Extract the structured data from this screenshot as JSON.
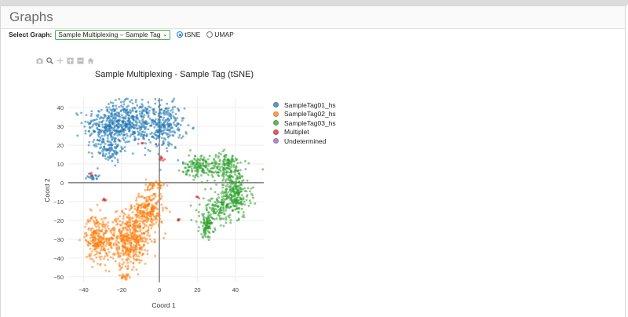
{
  "panel": {
    "title": "Graphs"
  },
  "controls": {
    "select_label": "Select Graph:",
    "selected_graph": "Sample Multiplexing – Sample Tag",
    "radios": [
      {
        "label": "tSNE",
        "checked": true
      },
      {
        "label": "UMAP",
        "checked": false
      }
    ]
  },
  "modebar": [
    "camera-icon",
    "zoom-icon",
    "pan-icon",
    "zoom-in-icon",
    "zoom-out-icon",
    "home-icon"
  ],
  "chart_data": {
    "type": "scatter",
    "title": "Sample Multiplexing - Sample Tag (tSNE)",
    "xlabel": "Coord 1",
    "ylabel": "Coord 2",
    "xlim": [
      -48,
      55
    ],
    "ylim": [
      -53,
      45
    ],
    "xticks": [
      -40,
      -20,
      0,
      20,
      40
    ],
    "yticks": [
      40,
      30,
      20,
      10,
      0,
      -10,
      -20,
      -30,
      -40,
      -50
    ],
    "grid": true,
    "legend_position": "right",
    "series": [
      {
        "name": "SampleTag01_hs",
        "color": "#1f77b4",
        "count": 900,
        "clusters": [
          {
            "cx": -27,
            "cy": 30,
            "sx": 6.5,
            "sy": 6,
            "n": 260
          },
          {
            "cx": -14,
            "cy": 32,
            "sx": 7,
            "sy": 6,
            "n": 320
          },
          {
            "cx": 3,
            "cy": 30,
            "sx": 5,
            "sy": 6,
            "n": 220
          },
          {
            "cx": -27,
            "cy": 17,
            "sx": 4,
            "sy": 3,
            "n": 80
          },
          {
            "cx": -35,
            "cy": 3.5,
            "sx": 1.5,
            "sy": 1.2,
            "n": 20
          }
        ]
      },
      {
        "name": "SampleTag02_hs",
        "color": "#ff7f0e",
        "count": 1000,
        "clusters": [
          {
            "cx": -16,
            "cy": -30,
            "sx": 6,
            "sy": 7,
            "n": 480
          },
          {
            "cx": -6,
            "cy": -15,
            "sx": 4,
            "sy": 5,
            "n": 240
          },
          {
            "cx": -33,
            "cy": -29,
            "sx": 3,
            "sy": 6,
            "n": 220
          },
          {
            "cx": -18,
            "cy": -50,
            "sx": 1.5,
            "sy": 1.2,
            "n": 20
          },
          {
            "cx": -2,
            "cy": -2,
            "sx": 2.5,
            "sy": 2,
            "n": 40
          }
        ]
      },
      {
        "name": "SampleTag03_hs",
        "color": "#2ca02c",
        "count": 750,
        "clusters": [
          {
            "cx": 22,
            "cy": 9,
            "sx": 5,
            "sy": 3,
            "n": 160
          },
          {
            "cx": 36,
            "cy": 8,
            "sx": 4,
            "sy": 4,
            "n": 140
          },
          {
            "cx": 40,
            "cy": -6,
            "sx": 4,
            "sy": 6,
            "n": 220
          },
          {
            "cx": 32,
            "cy": -13,
            "sx": 5,
            "sy": 4,
            "n": 140
          },
          {
            "cx": 25,
            "cy": -23,
            "sx": 2,
            "sy": 3,
            "n": 90
          }
        ]
      },
      {
        "name": "Multiplet",
        "color": "#d62728",
        "count": 30,
        "clusters": [
          {
            "cx": 1,
            "cy": 13,
            "sx": 0.8,
            "sy": 1,
            "n": 8
          },
          {
            "cx": -29,
            "cy": -9,
            "sx": 1,
            "sy": 0.4,
            "n": 6
          },
          {
            "cx": 10,
            "cy": -20,
            "sx": 0.6,
            "sy": 0.8,
            "n": 5
          },
          {
            "cx": 20,
            "cy": -8,
            "sx": 0.6,
            "sy": 0.5,
            "n": 4
          },
          {
            "cx": -9,
            "cy": 21,
            "sx": 0.5,
            "sy": 0.5,
            "n": 3
          },
          {
            "cx": -36,
            "cy": 4,
            "sx": 0.5,
            "sy": 0.5,
            "n": 4
          }
        ]
      },
      {
        "name": "Undetermined",
        "color": "#9467bd",
        "count": 0,
        "clusters": []
      }
    ]
  }
}
